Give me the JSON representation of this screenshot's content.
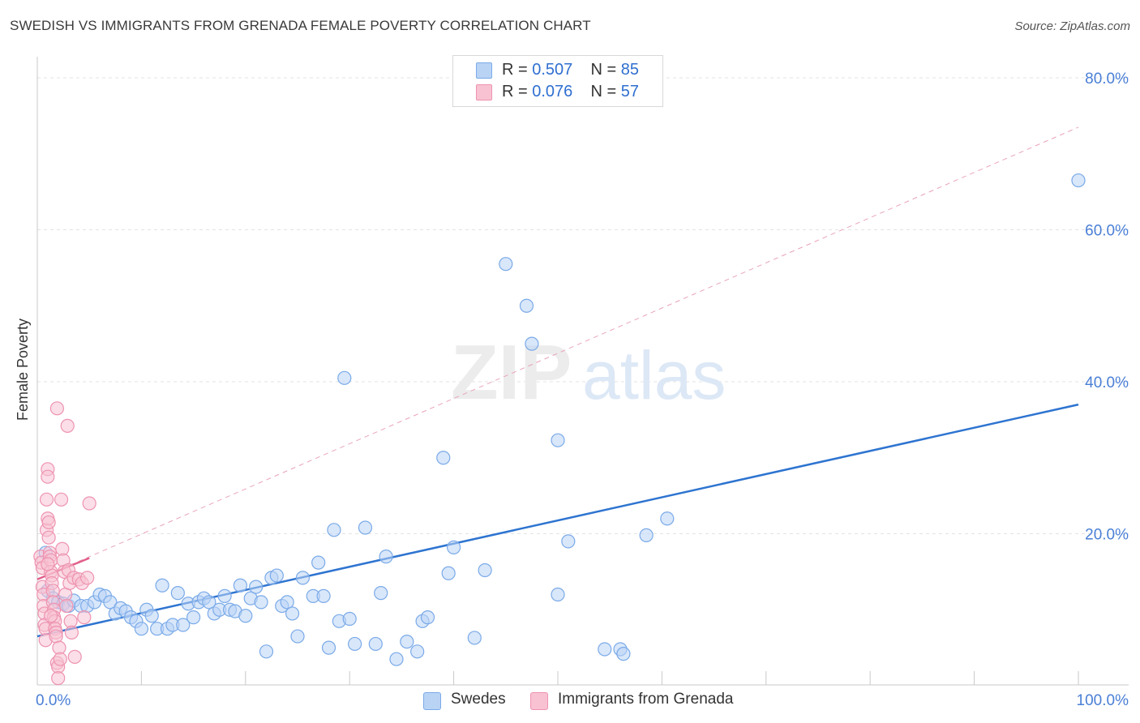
{
  "chart_data": {
    "type": "scatter",
    "title": "SWEDISH VS IMMIGRANTS FROM GRENADA FEMALE POVERTY CORRELATION CHART",
    "source": "Source: ZipAtlas.com",
    "ylabel": "Female Poverty",
    "xlabel": "",
    "xlim": [
      0,
      100
    ],
    "ylim": [
      0,
      82
    ],
    "x_tick_labels": [
      "0.0%",
      "100.0%"
    ],
    "y_ticks": [
      20,
      40,
      60,
      80
    ],
    "y_tick_labels": [
      "20.0%",
      "40.0%",
      "60.0%",
      "80.0%"
    ],
    "grid": true,
    "watermark": "ZIPatlas",
    "legend_position": "top-center",
    "series": [
      {
        "name": "Swedes",
        "r_label": "R =",
        "r_value": "0.507",
        "n_label": "N =",
        "n_value": "85",
        "color": "#7aaae8",
        "fill": "#b9d3f5",
        "line_color": "#2e74d0",
        "trend": {
          "x": [
            0,
            100
          ],
          "y": [
            6.5,
            37.0
          ],
          "style": "solid"
        },
        "points": [
          [
            0.8,
            17.5
          ],
          [
            1.0,
            12.5
          ],
          [
            1.5,
            11.5
          ],
          [
            2.0,
            11.0
          ],
          [
            2.5,
            10.8
          ],
          [
            3.0,
            10.5
          ],
          [
            3.5,
            11.2
          ],
          [
            4.2,
            10.5
          ],
          [
            4.8,
            10.5
          ],
          [
            5.5,
            11.0
          ],
          [
            6.0,
            12.0
          ],
          [
            6.5,
            11.8
          ],
          [
            7.0,
            11.0
          ],
          [
            7.5,
            9.5
          ],
          [
            8.0,
            10.2
          ],
          [
            8.5,
            9.8
          ],
          [
            9.0,
            9.0
          ],
          [
            9.5,
            8.5
          ],
          [
            10.0,
            7.5
          ],
          [
            10.5,
            10.0
          ],
          [
            11.0,
            9.2
          ],
          [
            11.5,
            7.5
          ],
          [
            12.0,
            13.2
          ],
          [
            12.5,
            7.5
          ],
          [
            13.0,
            8.0
          ],
          [
            13.5,
            12.2
          ],
          [
            14.0,
            8.0
          ],
          [
            14.5,
            10.8
          ],
          [
            15.0,
            9.0
          ],
          [
            15.5,
            11.0
          ],
          [
            16.0,
            11.5
          ],
          [
            16.5,
            11.0
          ],
          [
            17.0,
            9.5
          ],
          [
            17.5,
            10.0
          ],
          [
            18.0,
            11.8
          ],
          [
            18.5,
            10.0
          ],
          [
            19.0,
            9.8
          ],
          [
            19.5,
            13.2
          ],
          [
            20.0,
            9.2
          ],
          [
            20.5,
            11.5
          ],
          [
            21.0,
            13.0
          ],
          [
            21.5,
            11.0
          ],
          [
            22.0,
            4.5
          ],
          [
            22.5,
            14.2
          ],
          [
            23.0,
            14.5
          ],
          [
            23.5,
            10.5
          ],
          [
            24.0,
            11.0
          ],
          [
            24.5,
            9.5
          ],
          [
            25.0,
            6.5
          ],
          [
            25.5,
            14.2
          ],
          [
            26.5,
            11.8
          ],
          [
            27.0,
            16.2
          ],
          [
            27.5,
            11.8
          ],
          [
            28.0,
            5.0
          ],
          [
            28.5,
            20.5
          ],
          [
            29.0,
            8.5
          ],
          [
            29.5,
            40.5
          ],
          [
            30.0,
            8.8
          ],
          [
            30.5,
            5.5
          ],
          [
            31.5,
            20.8
          ],
          [
            32.5,
            5.5
          ],
          [
            33.0,
            12.2
          ],
          [
            33.5,
            17.0
          ],
          [
            34.5,
            3.5
          ],
          [
            35.5,
            5.8
          ],
          [
            36.5,
            4.5
          ],
          [
            37.0,
            8.5
          ],
          [
            37.5,
            9.0
          ],
          [
            39.0,
            30.0
          ],
          [
            39.5,
            14.8
          ],
          [
            40.0,
            18.2
          ],
          [
            42.0,
            6.3
          ],
          [
            43.0,
            15.2
          ],
          [
            45.0,
            55.5
          ],
          [
            47.0,
            50.0
          ],
          [
            47.5,
            45.0
          ],
          [
            50.0,
            32.3
          ],
          [
            50.0,
            12.0
          ],
          [
            51.0,
            19.0
          ],
          [
            54.5,
            4.8
          ],
          [
            56.0,
            4.8
          ],
          [
            56.3,
            4.2
          ],
          [
            58.5,
            19.8
          ],
          [
            60.5,
            22.0
          ],
          [
            100.0,
            66.5
          ]
        ]
      },
      {
        "name": "Immigrants from Grenada",
        "r_label": "R =",
        "r_value": "0.076",
        "n_label": "N =",
        "n_value": "57",
        "color": "#ee93b0",
        "fill": "#f8c2d3",
        "line_color": "#e2608a",
        "trend": {
          "x": [
            0,
            5
          ],
          "y": [
            14.0,
            16.8
          ],
          "style": "solid"
        },
        "trend_extended": {
          "x": [
            0,
            100
          ],
          "y": [
            14.0,
            73.5
          ],
          "style": "dashed"
        },
        "points": [
          [
            0.3,
            17.0
          ],
          [
            0.4,
            16.2
          ],
          [
            0.5,
            15.5
          ],
          [
            0.5,
            13.0
          ],
          [
            0.6,
            12.0
          ],
          [
            0.6,
            10.5
          ],
          [
            0.7,
            9.5
          ],
          [
            0.7,
            8.0
          ],
          [
            0.8,
            7.5
          ],
          [
            0.8,
            6.0
          ],
          [
            0.9,
            24.5
          ],
          [
            0.9,
            20.5
          ],
          [
            1.0,
            28.5
          ],
          [
            1.0,
            27.5
          ],
          [
            1.0,
            22.0
          ],
          [
            1.1,
            21.5
          ],
          [
            1.1,
            19.5
          ],
          [
            1.2,
            17.5
          ],
          [
            1.2,
            17.0
          ],
          [
            1.3,
            16.5
          ],
          [
            1.3,
            15.0
          ],
          [
            1.4,
            14.5
          ],
          [
            1.4,
            13.5
          ],
          [
            1.5,
            12.5
          ],
          [
            1.5,
            11.0
          ],
          [
            1.6,
            10.0
          ],
          [
            1.6,
            9.0
          ],
          [
            1.7,
            8.5
          ],
          [
            1.7,
            7.5
          ],
          [
            1.8,
            7.0
          ],
          [
            1.8,
            6.5
          ],
          [
            1.9,
            36.5
          ],
          [
            1.9,
            3.0
          ],
          [
            2.0,
            2.5
          ],
          [
            2.0,
            1.0
          ],
          [
            2.1,
            5.0
          ],
          [
            2.2,
            3.5
          ],
          [
            2.3,
            24.5
          ],
          [
            2.4,
            18.0
          ],
          [
            2.5,
            16.5
          ],
          [
            2.6,
            15.0
          ],
          [
            2.7,
            12.0
          ],
          [
            2.8,
            10.5
          ],
          [
            2.9,
            34.2
          ],
          [
            3.0,
            15.2
          ],
          [
            3.1,
            13.5
          ],
          [
            3.2,
            8.5
          ],
          [
            3.3,
            7.0
          ],
          [
            3.5,
            14.2
          ],
          [
            3.6,
            3.8
          ],
          [
            4.0,
            14.0
          ],
          [
            4.3,
            13.5
          ],
          [
            4.5,
            9.0
          ],
          [
            4.8,
            14.2
          ],
          [
            5.0,
            24.0
          ],
          [
            1.3,
            9.2
          ],
          [
            1.0,
            16.0
          ]
        ]
      }
    ]
  }
}
